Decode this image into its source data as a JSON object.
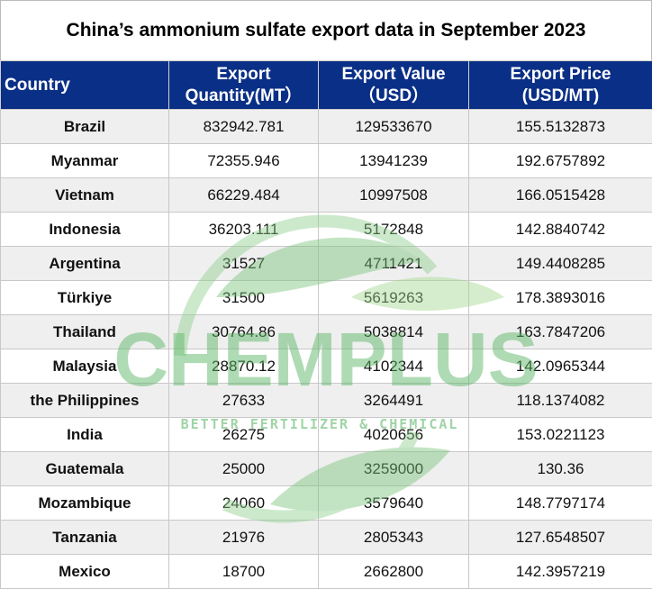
{
  "title": "China’s ammonium sulfate export data in September 2023",
  "table": {
    "header": [
      [
        "Country"
      ],
      [
        "Export",
        "Quantity(MT）"
      ],
      [
        "Export Value",
        "（USD）"
      ],
      [
        "Export Price",
        "(USD/MT)"
      ]
    ],
    "rows": [
      [
        "Brazil",
        "832942.781",
        "129533670",
        "155.5132873"
      ],
      [
        "Myanmar",
        "72355.946",
        "13941239",
        "192.6757892"
      ],
      [
        "Vietnam",
        "66229.484",
        "10997508",
        "166.0515428"
      ],
      [
        "Indonesia",
        "36203.111",
        "5172848",
        "142.8840742"
      ],
      [
        "Argentina",
        "31527",
        "4711421",
        "149.4408285"
      ],
      [
        "Türkiye",
        "31500",
        "5619263",
        "178.3893016"
      ],
      [
        "Thailand",
        "30764.86",
        "5038814",
        "163.7847206"
      ],
      [
        "Malaysia",
        "28870.12",
        "4102344",
        "142.0965344"
      ],
      [
        "the Philippines",
        "27633",
        "3264491",
        "118.1374082"
      ],
      [
        "India",
        "26275",
        "4020656",
        "153.0221123"
      ],
      [
        "Guatemala",
        "25000",
        "3259000",
        "130.36"
      ],
      [
        "Mozambique",
        "24060",
        "3579640",
        "148.7797174"
      ],
      [
        "Tanzania",
        "21976",
        "2805343",
        "127.6548507"
      ],
      [
        "Mexico",
        "18700",
        "2662800",
        "142.3957219"
      ]
    ]
  },
  "watermark": {
    "brand": "CHEMPLUS",
    "tagline": "BETTER FERTILIZER & CHEMICAL"
  }
}
